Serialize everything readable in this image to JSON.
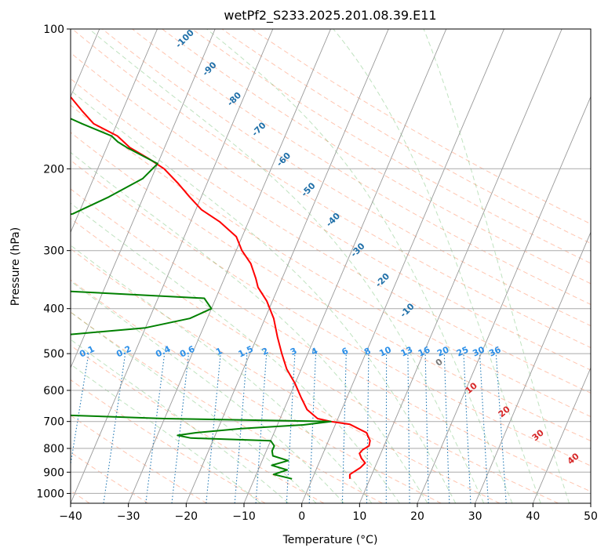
{
  "chart_data": {
    "type": "line",
    "title": "wetPf2_S233.2025.201.08.39.E11",
    "xlabel": "Temperature (°C)",
    "ylabel": "Pressure (hPa)",
    "xlim": [
      -40,
      50
    ],
    "ylim": [
      1050,
      100
    ],
    "y_scale": "log",
    "x_ticks": [
      -40,
      -30,
      -20,
      -10,
      0,
      10,
      20,
      30,
      40,
      50
    ],
    "x_tick_labels": [
      "−40",
      "−30",
      "−20",
      "−10",
      "0",
      "10",
      "20",
      "30",
      "40",
      "50"
    ],
    "y_ticks": [
      1000,
      900,
      800,
      700,
      600,
      500,
      400,
      300,
      200,
      100
    ],
    "y_tick_labels": [
      "1000",
      "900",
      "800",
      "700",
      "600",
      "500",
      "400",
      "300",
      "200",
      "100"
    ],
    "grid": true,
    "skew": 35,
    "series": [
      {
        "color": "#ff0000",
        "points": [
          [
            930,
            6.5
          ],
          [
            910,
            6.2
          ],
          [
            880,
            7.5
          ],
          [
            860,
            8.0
          ],
          [
            840,
            7.0
          ],
          [
            820,
            6.3
          ],
          [
            805,
            6.6
          ],
          [
            790,
            7.4
          ],
          [
            770,
            7.2
          ],
          [
            740,
            6.0
          ],
          [
            710,
            2.5
          ],
          [
            700,
            -1.0
          ],
          [
            690,
            -3.5
          ],
          [
            660,
            -6.0
          ],
          [
            620,
            -8.0
          ],
          [
            580,
            -10.0
          ],
          [
            540,
            -12.5
          ],
          [
            500,
            -14.5
          ],
          [
            460,
            -16.5
          ],
          [
            420,
            -18.5
          ],
          [
            385,
            -21.0
          ],
          [
            360,
            -23.5
          ],
          [
            345,
            -24.5
          ],
          [
            320,
            -26.5
          ],
          [
            300,
            -29.0
          ],
          [
            280,
            -31.0
          ],
          [
            260,
            -35.0
          ],
          [
            245,
            -39.0
          ],
          [
            230,
            -42.0
          ],
          [
            215,
            -45.0
          ],
          [
            200,
            -48.5
          ],
          [
            190,
            -52.0
          ],
          [
            180,
            -56.0
          ],
          [
            170,
            -59.0
          ],
          [
            160,
            -64.0
          ],
          [
            150,
            -67.0
          ],
          [
            140,
            -70.0
          ],
          [
            125,
            -75.5
          ],
          [
            112,
            -82.0
          ],
          [
            100,
            -88.0
          ]
        ]
      },
      {
        "color": "#008000",
        "points": [
          [
            930,
            -3.5
          ],
          [
            910,
            -7.0
          ],
          [
            890,
            -5.0
          ],
          [
            870,
            -8.0
          ],
          [
            850,
            -5.5
          ],
          [
            830,
            -8.5
          ],
          [
            810,
            -9.0
          ],
          [
            790,
            -9.0
          ],
          [
            770,
            -10.0
          ],
          [
            760,
            -24.0
          ],
          [
            750,
            -26.5
          ],
          [
            740,
            -23.5
          ],
          [
            725,
            -16.0
          ],
          [
            712,
            -5.5
          ],
          [
            700,
            -1.0
          ],
          [
            690,
            -30.0
          ],
          [
            670,
            -60.0
          ],
          [
            650,
            -80.0
          ],
          [
            610,
            -85.0
          ],
          [
            590,
            -90.0
          ],
          [
            560,
            -95.0
          ],
          [
            540,
            -95.0
          ],
          [
            520,
            -90.0
          ],
          [
            500,
            -85.0
          ],
          [
            470,
            -65.0
          ],
          [
            440,
            -40.0
          ],
          [
            420,
            -33.0
          ],
          [
            400,
            -30.0
          ],
          [
            380,
            -32.0
          ],
          [
            365,
            -60.0
          ],
          [
            350,
            -90.0
          ],
          [
            320,
            -110.0
          ],
          [
            300,
            -100.0
          ],
          [
            280,
            -85.0
          ],
          [
            265,
            -70.0
          ],
          [
            250,
            -61.0
          ],
          [
            230,
            -56.0
          ],
          [
            210,
            -51.5
          ],
          [
            195,
            -50.0
          ],
          [
            180,
            -56.5
          ],
          [
            175,
            -58.5
          ],
          [
            170,
            -60.0
          ],
          [
            160,
            -66.0
          ],
          [
            150,
            -72.0
          ],
          [
            140,
            -77.0
          ],
          [
            130,
            -80.0
          ],
          [
            120,
            -83.0
          ],
          [
            110,
            -86.0
          ],
          [
            100,
            -89.0
          ]
        ]
      }
    ],
    "dry_adiabats_C": [
      -50,
      -40,
      -30,
      -20,
      -10,
      0,
      10,
      20,
      30,
      40,
      50,
      60,
      70,
      80,
      90,
      100,
      110,
      120,
      130,
      140,
      150,
      160,
      170
    ],
    "moist_adiabats_C": [
      -10,
      -5,
      0,
      5,
      10,
      15,
      20,
      25,
      30,
      35,
      40,
      45
    ],
    "mixing_ratios": [
      "0.1",
      "0.2",
      "0.4",
      "0.6",
      "1",
      "1.5",
      "2",
      "3",
      "4",
      "6",
      "8",
      "10",
      "13",
      "16",
      "20",
      "25",
      "30",
      "36"
    ],
    "dry_adiabat_labels": [
      "-100",
      "-90",
      "-80",
      "-70",
      "-60",
      "-50",
      "-40",
      "-30",
      "-20",
      "-10"
    ],
    "moist_adiabat_labels": [
      "0",
      "10",
      "20",
      "30",
      "40"
    ]
  }
}
